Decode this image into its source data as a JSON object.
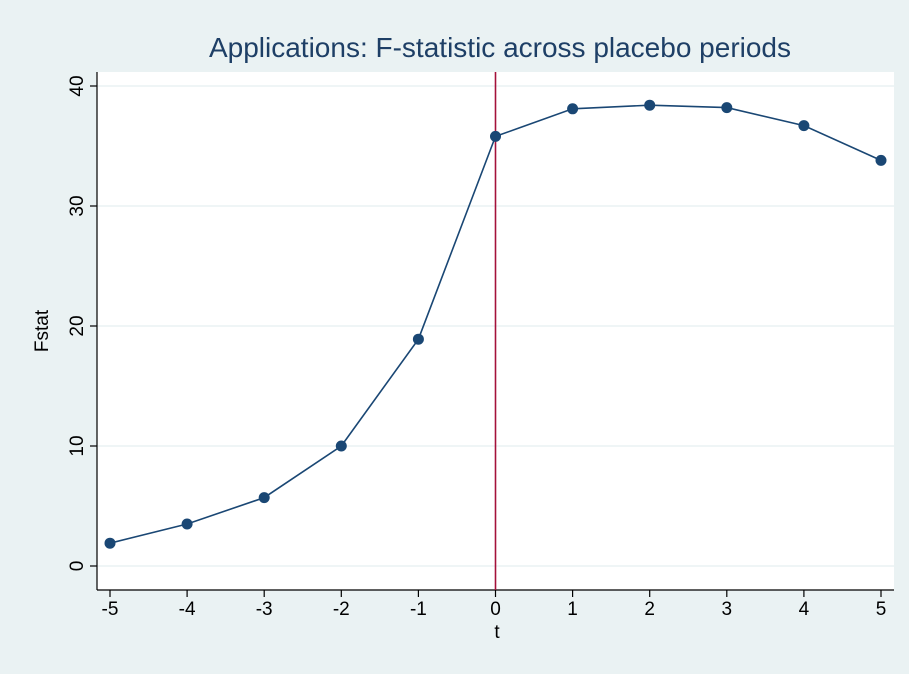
{
  "chart_data": {
    "type": "line",
    "title": "Applications: F-statistic across placebo periods",
    "xlabel": "t",
    "ylabel": "Fstat",
    "xlim": [
      -5,
      5
    ],
    "ylim": [
      0,
      40
    ],
    "x_ticks": [
      "-5",
      "-4",
      "-3",
      "-2",
      "-1",
      "0",
      "1",
      "2",
      "3",
      "4",
      "5"
    ],
    "y_ticks": [
      "0",
      "10",
      "20",
      "30",
      "40"
    ],
    "grid": true,
    "legend": "none",
    "series": [
      {
        "x": [
          -5,
          -4,
          -3,
          -2,
          -1,
          0,
          1,
          2,
          3,
          4,
          5
        ],
        "values": [
          1.9,
          3.5,
          5.7,
          10.0,
          18.9,
          35.8,
          38.1,
          38.4,
          38.2,
          36.7,
          33.8
        ]
      }
    ],
    "reference_line": {
      "x": 0
    },
    "colors": {
      "background": "#eaf2f3",
      "plot_area": "#ffffff",
      "line": "#1a4774",
      "marker": "#1a4774",
      "reference_line": "#a4113a",
      "grid": "#eaf2f3",
      "title": "#1e3f66"
    }
  }
}
